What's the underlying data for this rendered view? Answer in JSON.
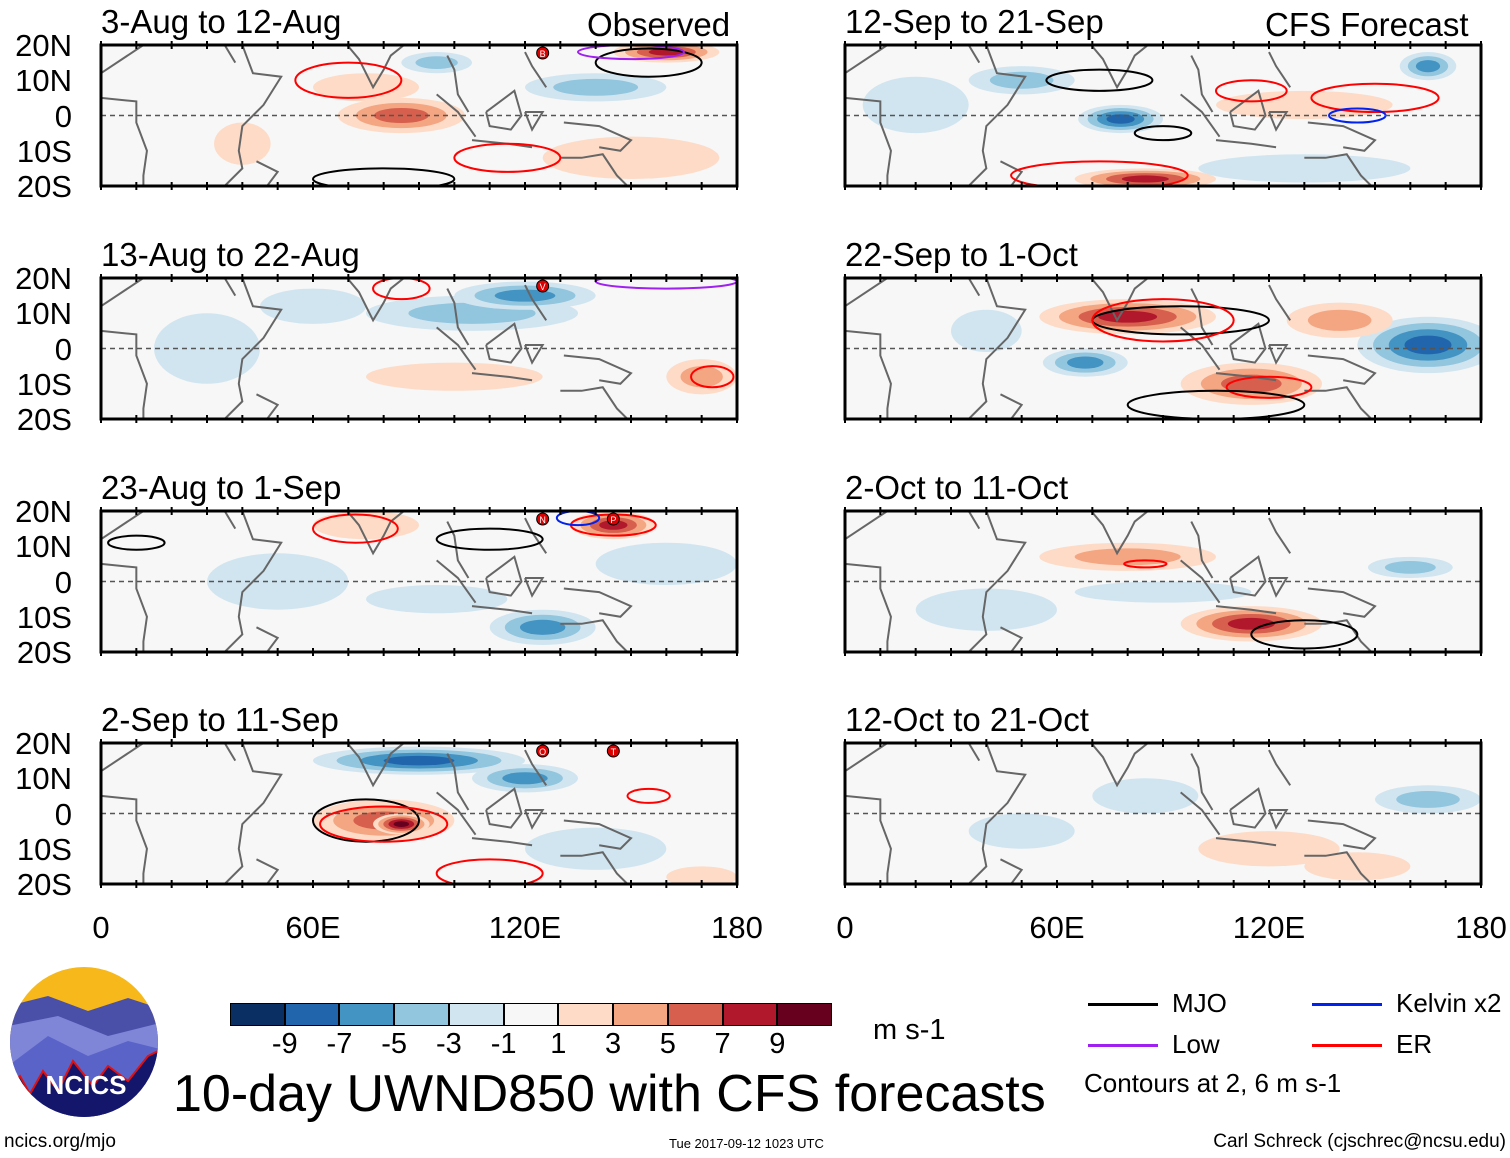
{
  "column_labels": {
    "left": "Observed",
    "right": "CFS Forecast"
  },
  "chart_data": {
    "type": "heatmap",
    "title": "10-day UWND850 with CFS forecasts",
    "units": "m s-1",
    "lon_range": [
      0,
      180
    ],
    "lat_range": [
      -20,
      20
    ],
    "y_ticks": [
      "20N",
      "10N",
      "0",
      "10S",
      "20S"
    ],
    "x_ticks": [
      "0",
      "60E",
      "120E",
      "180"
    ],
    "colorbar": {
      "levels": [
        "-9",
        "-7",
        "-5",
        "-3",
        "-1",
        "1",
        "3",
        "5",
        "7",
        "9"
      ],
      "colors": [
        "#0a3063",
        "#2166ac",
        "#4393c3",
        "#92c5de",
        "#d1e5f0",
        "#f7f7f7",
        "#fddbc7",
        "#f4a582",
        "#d6604d",
        "#b2182b",
        "#67001f"
      ],
      "units": "m s-1"
    },
    "panels": [
      {
        "title": "3-Aug to 12-Aug",
        "column": "left",
        "blobs": [
          [
            85,
            0,
            18,
            5,
            5
          ],
          [
            75,
            8,
            15,
            4,
            2
          ],
          [
            140,
            8,
            20,
            4,
            -3
          ],
          [
            95,
            15,
            10,
            3,
            -3
          ],
          [
            160,
            18,
            15,
            3,
            7
          ],
          [
            40,
            -8,
            8,
            6,
            2
          ],
          [
            150,
            -12,
            25,
            6,
            2
          ]
        ],
        "contours": [
          [
            70,
            10,
            15,
            5,
            "ER"
          ],
          [
            115,
            -12,
            15,
            4,
            "ER"
          ],
          [
            80,
            -18,
            20,
            3,
            "MJO"
          ],
          [
            155,
            15,
            15,
            4,
            "MJO"
          ],
          [
            150,
            18,
            15,
            2,
            "Low"
          ]
        ],
        "storms": [
          "B"
        ]
      },
      {
        "title": "13-Aug to 22-Aug",
        "column": "left",
        "blobs": [
          [
            105,
            10,
            30,
            5,
            -3
          ],
          [
            120,
            15,
            20,
            4,
            -5
          ],
          [
            60,
            12,
            15,
            5,
            -2
          ],
          [
            170,
            -8,
            10,
            5,
            4
          ],
          [
            100,
            -8,
            25,
            4,
            2
          ],
          [
            30,
            0,
            15,
            10,
            -1
          ]
        ],
        "contours": [
          [
            85,
            17,
            8,
            3,
            "ER"
          ],
          [
            173,
            -8,
            6,
            3,
            "ER"
          ],
          [
            160,
            19,
            20,
            2,
            "Low"
          ]
        ],
        "storms": [
          "V"
        ]
      },
      {
        "title": "23-Aug to 1-Sep",
        "column": "left",
        "blobs": [
          [
            145,
            16,
            12,
            4,
            7
          ],
          [
            125,
            -13,
            15,
            5,
            -5
          ],
          [
            75,
            16,
            15,
            4,
            2
          ],
          [
            50,
            0,
            20,
            8,
            -2
          ],
          [
            160,
            5,
            20,
            6,
            -2
          ],
          [
            95,
            -5,
            20,
            4,
            -1
          ]
        ],
        "contours": [
          [
            72,
            15,
            12,
            4,
            "ER"
          ],
          [
            145,
            16,
            12,
            3,
            "ER"
          ],
          [
            110,
            12,
            15,
            3,
            "MJO"
          ],
          [
            10,
            11,
            8,
            2,
            "MJO"
          ],
          [
            135,
            18,
            6,
            2,
            "Kelvin x2"
          ]
        ],
        "storms": [
          "N",
          "P"
        ]
      },
      {
        "title": "2-Sep to 11-Sep",
        "column": "left",
        "blobs": [
          [
            90,
            15,
            30,
            4,
            -7
          ],
          [
            120,
            10,
            15,
            4,
            -5
          ],
          [
            80,
            -2,
            20,
            6,
            5
          ],
          [
            85,
            -3,
            8,
            3,
            9
          ],
          [
            140,
            -10,
            20,
            6,
            -2
          ],
          [
            170,
            -18,
            10,
            3,
            2
          ]
        ],
        "contours": [
          [
            75,
            -2,
            15,
            6,
            "MJO"
          ],
          [
            80,
            -3,
            18,
            5,
            "ER"
          ],
          [
            110,
            -17,
            15,
            4,
            "ER"
          ],
          [
            155,
            5,
            6,
            2,
            "ER"
          ]
        ],
        "storms": [
          "O",
          "T"
        ]
      },
      {
        "title": "12-Sep to 21-Sep",
        "column": "right",
        "blobs": [
          [
            78,
            -1,
            12,
            4,
            -7
          ],
          [
            50,
            10,
            15,
            4,
            -3
          ],
          [
            130,
            3,
            25,
            4,
            2
          ],
          [
            85,
            -18,
            20,
            3,
            7
          ],
          [
            130,
            -15,
            30,
            4,
            -2
          ],
          [
            165,
            14,
            8,
            4,
            -5
          ],
          [
            20,
            3,
            15,
            8,
            -1
          ]
        ],
        "contours": [
          [
            72,
            -17,
            25,
            4,
            "ER"
          ],
          [
            150,
            5,
            18,
            4,
            "ER"
          ],
          [
            115,
            7,
            10,
            3,
            "ER"
          ],
          [
            72,
            10,
            15,
            3,
            "MJO"
          ],
          [
            90,
            -5,
            8,
            2,
            "MJO"
          ],
          [
            145,
            0,
            8,
            2,
            "Kelvin x2"
          ]
        ],
        "storms": []
      },
      {
        "title": "22-Sep to 1-Oct",
        "column": "right",
        "blobs": [
          [
            80,
            9,
            25,
            5,
            7
          ],
          [
            165,
            1,
            20,
            8,
            -7
          ],
          [
            68,
            -4,
            12,
            4,
            -5
          ],
          [
            115,
            -10,
            20,
            6,
            5
          ],
          [
            40,
            5,
            10,
            6,
            -2
          ],
          [
            140,
            8,
            15,
            5,
            3
          ]
        ],
        "contours": [
          [
            95,
            8,
            25,
            4,
            "MJO"
          ],
          [
            90,
            8,
            20,
            6,
            "ER"
          ],
          [
            120,
            -11,
            12,
            3,
            "ER"
          ],
          [
            105,
            -16,
            25,
            4,
            "MJO"
          ]
        ],
        "storms": []
      },
      {
        "title": "2-Oct to 11-Oct",
        "column": "right",
        "blobs": [
          [
            115,
            -12,
            20,
            5,
            7
          ],
          [
            80,
            7,
            25,
            4,
            4
          ],
          [
            90,
            -3,
            25,
            3,
            -2
          ],
          [
            160,
            4,
            12,
            3,
            -3
          ],
          [
            40,
            -8,
            20,
            6,
            -1
          ]
        ],
        "contours": [
          [
            85,
            5,
            6,
            1,
            "ER"
          ],
          [
            130,
            -15,
            15,
            4,
            "MJO"
          ]
        ],
        "storms": []
      },
      {
        "title": "12-Oct to 21-Oct",
        "column": "right",
        "blobs": [
          [
            165,
            4,
            15,
            4,
            -4
          ],
          [
            120,
            -10,
            20,
            5,
            2
          ],
          [
            85,
            5,
            15,
            5,
            -1
          ],
          [
            50,
            -5,
            15,
            5,
            -1
          ],
          [
            145,
            -15,
            15,
            4,
            2
          ]
        ],
        "contours": [],
        "storms": []
      }
    ]
  },
  "legend": {
    "items": [
      {
        "label": "MJO",
        "color": "#000000"
      },
      {
        "label": "Kelvin x2",
        "color": "#0022ee"
      },
      {
        "label": "Low",
        "color": "#a020f0"
      },
      {
        "label": "ER",
        "color": "#ff0000"
      }
    ],
    "contours_note": "Contours at 2, 6 m s-1"
  },
  "logo": {
    "text": "NCICS"
  },
  "footer": {
    "left": "ncics.org/mjo",
    "center": "Tue 2017-09-12 1023 UTC",
    "right": "Carl Schreck (cjschrec@ncsu.edu)"
  }
}
